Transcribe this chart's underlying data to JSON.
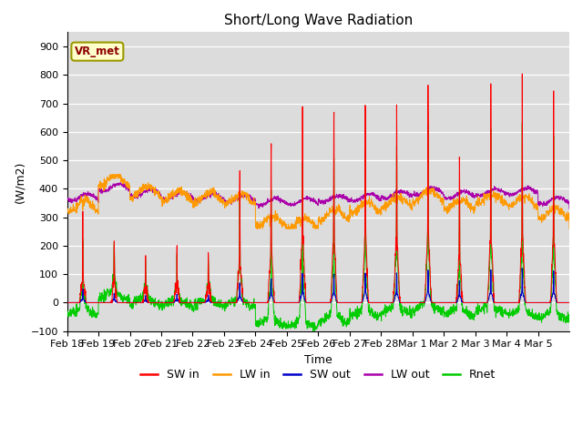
{
  "title": "Short/Long Wave Radiation",
  "xlabel": "Time",
  "ylabel": "(W/m2)",
  "ylim": [
    -100,
    950
  ],
  "yticks": [
    -100,
    0,
    100,
    200,
    300,
    400,
    500,
    600,
    700,
    800,
    900
  ],
  "bg_color": "#dcdcdc",
  "fig_color": "#ffffff",
  "station_label": "VR_met",
  "colors": {
    "SW_in": "#ff0000",
    "LW_in": "#ff9900",
    "SW_out": "#0000cc",
    "LW_out": "#aa00aa",
    "Rnet": "#00cc00"
  },
  "legend_labels": [
    "SW in",
    "LW in",
    "SW out",
    "LW out",
    "Rnet"
  ],
  "n_days": 16,
  "tick_labels": [
    "Feb 18",
    "Feb 19",
    "Feb 20",
    "Feb 21",
    "Feb 22",
    "Feb 23",
    "Feb 24",
    "Feb 25",
    "Feb 26",
    "Feb 27",
    "Feb 28",
    "Mar 1",
    "Mar 2",
    "Mar 3",
    "Mar 4",
    "Mar 5"
  ]
}
